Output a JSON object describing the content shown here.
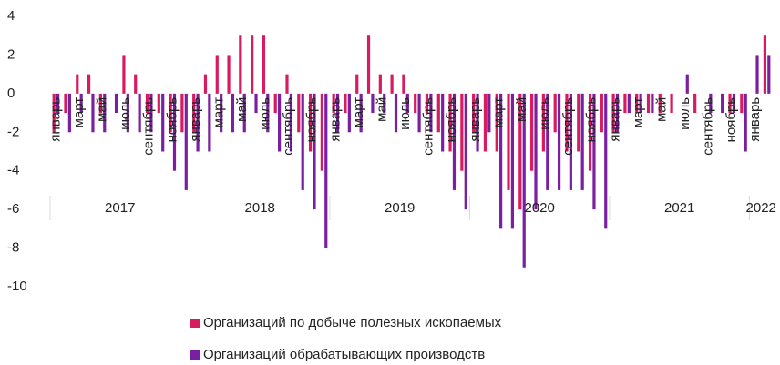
{
  "chart_data": {
    "type": "bar",
    "categories": [
      "январь",
      null,
      "март",
      null,
      "май",
      null,
      "июль",
      null,
      "сентябрь",
      null,
      "ноябрь",
      null,
      "январь",
      null,
      "март",
      null,
      "май",
      null,
      "июль",
      null,
      "сентябрь",
      null,
      "ноябрь",
      null,
      "январь",
      null,
      "март",
      null,
      "май",
      null,
      "июль",
      null,
      "сентябрь",
      null,
      "ноябрь",
      null,
      "январь",
      null,
      "март",
      null,
      "май",
      null,
      "июль",
      null,
      "сентябрь",
      null,
      "ноябрь",
      null,
      "январь",
      null,
      "март",
      null,
      "май",
      null,
      "июль",
      null,
      "сентябрь",
      null,
      "ноябрь",
      null,
      "январь",
      null
    ],
    "groups": [
      {
        "name": "2017",
        "size": 12
      },
      {
        "name": "2018",
        "size": 12
      },
      {
        "name": "2019",
        "size": 12
      },
      {
        "name": "2020",
        "size": 12
      },
      {
        "name": "2021",
        "size": 12
      },
      {
        "name": "2022",
        "size": 2
      }
    ],
    "series": [
      {
        "name": "Организаций по добыче полезных ископаемых",
        "color": "#d81b60",
        "values": [
          -2,
          -1,
          1,
          1,
          -1,
          0,
          2,
          1,
          -1,
          -1,
          -2,
          -2,
          -2,
          1,
          2,
          2,
          3,
          3,
          3,
          -1,
          1,
          -2,
          -3,
          -4,
          -1,
          -1,
          1,
          3,
          1,
          1,
          1,
          -1,
          -1,
          -2,
          -3,
          -4,
          -2,
          -3,
          -3,
          -5,
          -6,
          -4,
          -3,
          -2,
          -3,
          -3,
          -4,
          -2,
          -2,
          -1,
          -1,
          -1,
          -1,
          -1,
          0,
          -1,
          0,
          0,
          -1,
          -1,
          0,
          3
        ]
      },
      {
        "name": "Организаций обрабатывающих производств",
        "color": "#7b1fa2",
        "values": [
          -1,
          -2,
          -1,
          -2,
          -2,
          -1,
          -2,
          -2,
          -2,
          -3,
          -4,
          -5,
          -3,
          -3,
          -2,
          -2,
          -2,
          -1,
          -2,
          -3,
          -3,
          -5,
          -6,
          -8,
          -2,
          -2,
          -2,
          -1,
          -1,
          -2,
          -1,
          -2,
          -2,
          -3,
          -5,
          -6,
          -3,
          -2,
          -7,
          -7,
          -9,
          -6,
          -5,
          -5,
          -5,
          -5,
          -6,
          -7,
          -2,
          -1,
          -1,
          -1,
          0,
          0,
          1,
          0,
          -1,
          -1,
          -1,
          -3,
          2,
          2
        ]
      }
    ],
    "ylim": [
      -10,
      4
    ],
    "yticks": [
      4,
      2,
      0,
      -2,
      -4,
      -6,
      -8,
      -10
    ],
    "grid": false
  }
}
